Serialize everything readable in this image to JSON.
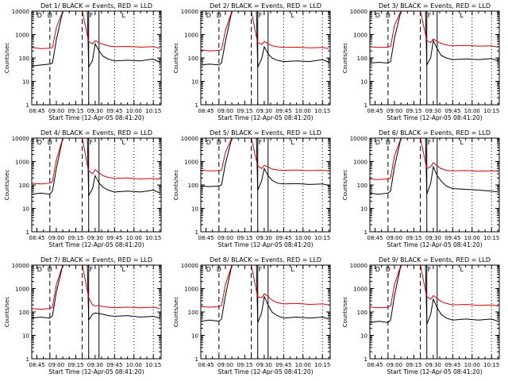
{
  "figure": {
    "y_label": "Counts/sec",
    "x_label": "Start Time (12-Apr-05 08:41:20)",
    "x_ticks": [
      "08:45",
      "09:00",
      "09:15",
      "09:30",
      "09:45",
      "10:00",
      "10:15"
    ],
    "y_ticks": [
      "1",
      "10",
      "100",
      "1000",
      "10000"
    ],
    "markers": [
      "D",
      "D",
      "F",
      "L"
    ],
    "colors": {
      "events": "#000000",
      "lld": "#dd0000",
      "background": "#ffffff"
    }
  },
  "chart_data": [
    {
      "type": "line",
      "title": "Det 1/ BLACK = Events, RED = LLD",
      "xlabel": "Start Time (12-Apr-05 08:41:20)",
      "ylabel": "Counts/sec",
      "x_range": [
        "08:41",
        "10:21"
      ],
      "ylim": [
        1,
        10000
      ],
      "yscale": "log",
      "x": [
        "08:41",
        "08:48",
        "08:55",
        "08:57",
        "09:00",
        "09:05",
        "09:10",
        "09:15",
        "09:20",
        "09:24",
        "09:25",
        "09:28",
        "09:30",
        "09:33",
        "09:36",
        "09:40",
        "09:45",
        "09:55",
        "10:05",
        "10:15",
        "10:20"
      ],
      "series": [
        {
          "name": "Events",
          "values": [
            45,
            50,
            55,
            60,
            600,
            10000,
            10000,
            10000,
            10000,
            10000,
            40,
            80,
            400,
            200,
            120,
            90,
            75,
            80,
            75,
            90,
            65
          ]
        },
        {
          "name": "LLD",
          "values": [
            280,
            250,
            260,
            280,
            2000,
            10000,
            10000,
            10000,
            10000,
            900,
            500,
            400,
            550,
            450,
            380,
            330,
            300,
            310,
            290,
            300,
            260
          ]
        }
      ]
    },
    {
      "type": "line",
      "title": "Det 2/ BLACK = Events, RED = LLD",
      "xlabel": "Start Time (12-Apr-05 08:41:20)",
      "ylabel": "Counts/sec",
      "x_range": [
        "08:41",
        "10:21"
      ],
      "ylim": [
        1,
        10000
      ],
      "yscale": "log",
      "x": [
        "08:41",
        "08:48",
        "08:55",
        "08:57",
        "09:00",
        "09:05",
        "09:10",
        "09:15",
        "09:20",
        "09:24",
        "09:25",
        "09:28",
        "09:30",
        "09:33",
        "09:36",
        "09:40",
        "09:45",
        "09:55",
        "10:05",
        "10:15",
        "10:20"
      ],
      "series": [
        {
          "name": "Events",
          "values": [
            50,
            55,
            50,
            60,
            500,
            10000,
            10000,
            10000,
            10000,
            10000,
            40,
            90,
            300,
            150,
            100,
            80,
            70,
            75,
            70,
            85,
            65
          ]
        },
        {
          "name": "LLD",
          "values": [
            220,
            200,
            210,
            230,
            1500,
            10000,
            10000,
            10000,
            10000,
            800,
            450,
            380,
            500,
            400,
            330,
            300,
            280,
            290,
            270,
            280,
            250
          ]
        }
      ]
    },
    {
      "type": "line",
      "title": "Det 3/ BLACK = Events, RED = LLD",
      "xlabel": "Start Time (12-Apr-05 08:41:20)",
      "ylabel": "Counts/sec",
      "x_range": [
        "08:41",
        "10:21"
      ],
      "ylim": [
        1,
        10000
      ],
      "yscale": "log",
      "x": [
        "08:41",
        "08:48",
        "08:55",
        "08:57",
        "09:00",
        "09:05",
        "09:10",
        "09:15",
        "09:20",
        "09:24",
        "09:25",
        "09:28",
        "09:30",
        "09:33",
        "09:36",
        "09:40",
        "09:45",
        "09:55",
        "10:05",
        "10:15",
        "10:20"
      ],
      "series": [
        {
          "name": "Events",
          "values": [
            60,
            65,
            60,
            70,
            700,
            10000,
            10000,
            10000,
            10000,
            10000,
            50,
            100,
            550,
            250,
            130,
            100,
            85,
            90,
            85,
            95,
            75
          ]
        },
        {
          "name": "LLD",
          "values": [
            300,
            280,
            290,
            310,
            2500,
            10000,
            10000,
            10000,
            10000,
            1000,
            550,
            450,
            650,
            500,
            420,
            360,
            330,
            340,
            320,
            330,
            290
          ]
        }
      ]
    },
    {
      "type": "line",
      "title": "Det 4/ BLACK = Events, RED = LLD",
      "xlabel": "Start Time (12-Apr-05 08:41:20)",
      "ylabel": "Counts/sec",
      "x_range": [
        "08:41",
        "10:21"
      ],
      "ylim": [
        1,
        10000
      ],
      "yscale": "log",
      "x": [
        "08:41",
        "08:48",
        "08:55",
        "08:57",
        "09:00",
        "09:05",
        "09:10",
        "09:15",
        "09:20",
        "09:24",
        "09:25",
        "09:28",
        "09:30",
        "09:33",
        "09:36",
        "09:40",
        "09:45",
        "09:55",
        "10:05",
        "10:15",
        "10:20"
      ],
      "series": [
        {
          "name": "Events",
          "values": [
            40,
            45,
            40,
            55,
            500,
            10000,
            10000,
            10000,
            10000,
            10000,
            35,
            70,
            250,
            120,
            80,
            60,
            50,
            55,
            50,
            60,
            45
          ]
        },
        {
          "name": "LLD",
          "values": [
            120,
            110,
            120,
            140,
            1200,
            10000,
            10000,
            10000,
            10000,
            700,
            400,
            300,
            450,
            330,
            250,
            210,
            190,
            200,
            180,
            190,
            170
          ]
        }
      ]
    },
    {
      "type": "line",
      "title": "Det 5/ BLACK = Events, RED = LLD",
      "xlabel": "Start Time (12-Apr-05 08:41:20)",
      "ylabel": "Counts/sec",
      "x_range": [
        "08:41",
        "10:21"
      ],
      "ylim": [
        1,
        10000
      ],
      "yscale": "log",
      "x": [
        "08:41",
        "08:48",
        "08:55",
        "08:57",
        "09:00",
        "09:05",
        "09:10",
        "09:15",
        "09:20",
        "09:24",
        "09:25",
        "09:28",
        "09:30",
        "09:33",
        "09:36",
        "09:40",
        "09:45",
        "09:55",
        "10:05",
        "10:15",
        "10:20"
      ],
      "series": [
        {
          "name": "Events",
          "values": [
            90,
            85,
            90,
            100,
            800,
            10000,
            10000,
            10000,
            10000,
            10000,
            60,
            150,
            500,
            250,
            160,
            120,
            110,
            115,
            105,
            110,
            95
          ]
        },
        {
          "name": "LLD",
          "values": [
            420,
            400,
            410,
            430,
            2500,
            10000,
            10000,
            10000,
            10000,
            1100,
            650,
            500,
            700,
            580,
            480,
            440,
            420,
            430,
            410,
            420,
            400
          ]
        }
      ]
    },
    {
      "type": "line",
      "title": "Det 6/ BLACK = Events, RED = LLD",
      "xlabel": "Start Time (12-Apr-05 08:41:20)",
      "ylabel": "Counts/sec",
      "x_range": [
        "08:41",
        "10:21"
      ],
      "ylim": [
        1,
        10000
      ],
      "yscale": "log",
      "x": [
        "08:41",
        "08:48",
        "08:55",
        "08:57",
        "09:00",
        "09:05",
        "09:10",
        "09:15",
        "09:20",
        "09:24",
        "09:25",
        "09:28",
        "09:30",
        "09:33",
        "09:36",
        "09:40",
        "09:45",
        "09:55",
        "10:05",
        "10:15",
        "10:20"
      ],
      "series": [
        {
          "name": "Events",
          "values": [
            45,
            40,
            45,
            55,
            600,
            10000,
            10000,
            10000,
            10000,
            10000,
            40,
            120,
            600,
            250,
            150,
            90,
            70,
            65,
            60,
            55,
            50
          ]
        },
        {
          "name": "LLD",
          "values": [
            180,
            170,
            180,
            200,
            1800,
            10000,
            10000,
            10000,
            10000,
            900,
            500,
            600,
            900,
            650,
            500,
            420,
            400,
            410,
            390,
            400,
            380
          ]
        }
      ]
    },
    {
      "type": "line",
      "title": "Det 7/ BLACK = Events, RED = LLD",
      "xlabel": "Start Time (12-Apr-05 08:41:20)",
      "ylabel": "Counts/sec",
      "x_range": [
        "08:41",
        "10:21"
      ],
      "ylim": [
        1,
        10000
      ],
      "yscale": "log",
      "x": [
        "08:41",
        "08:48",
        "08:55",
        "08:57",
        "09:00",
        "09:05",
        "09:10",
        "09:15",
        "09:20",
        "09:24",
        "09:25",
        "09:28",
        "09:30",
        "09:33",
        "09:36",
        "09:40",
        "09:45",
        "09:55",
        "10:05",
        "10:15",
        "10:20"
      ],
      "series": [
        {
          "name": "Events",
          "values": [
            55,
            60,
            55,
            70,
            700,
            10000,
            10000,
            10000,
            10000,
            10000,
            45,
            80,
            90,
            85,
            80,
            70,
            65,
            70,
            60,
            65,
            55
          ]
        },
        {
          "name": "LLD",
          "values": [
            140,
            130,
            140,
            160,
            1500,
            10000,
            10000,
            10000,
            10000,
            800,
            400,
            200,
            180,
            190,
            170,
            160,
            150,
            160,
            150,
            160,
            140
          ]
        }
      ]
    },
    {
      "type": "line",
      "title": "Det 8/ BLACK = Events, RED = LLD",
      "xlabel": "Start Time (12-Apr-05 08:41:20)",
      "ylabel": "Counts/sec",
      "x_range": [
        "08:41",
        "10:21"
      ],
      "ylim": [
        1,
        10000
      ],
      "yscale": "log",
      "x": [
        "08:41",
        "08:48",
        "08:55",
        "08:57",
        "09:00",
        "09:05",
        "09:10",
        "09:15",
        "09:20",
        "09:24",
        "09:25",
        "09:28",
        "09:30",
        "09:33",
        "09:36",
        "09:40",
        "09:45",
        "09:55",
        "10:05",
        "10:15",
        "10:20"
      ],
      "series": [
        {
          "name": "Events",
          "values": [
            40,
            45,
            40,
            50,
            500,
            10000,
            10000,
            10000,
            10000,
            10000,
            35,
            90,
            450,
            200,
            100,
            70,
            55,
            60,
            55,
            60,
            50
          ]
        },
        {
          "name": "LLD",
          "values": [
            170,
            160,
            170,
            190,
            1500,
            10000,
            10000,
            10000,
            10000,
            800,
            450,
            400,
            600,
            450,
            320,
            250,
            220,
            230,
            210,
            220,
            200
          ]
        }
      ]
    },
    {
      "type": "line",
      "title": "Det 9/ BLACK = Events, RED = LLD",
      "xlabel": "Start Time (12-Apr-05 08:41:20)",
      "ylabel": "Counts/sec",
      "x_range": [
        "08:41",
        "10:21"
      ],
      "ylim": [
        1,
        10000
      ],
      "yscale": "log",
      "x": [
        "08:41",
        "08:48",
        "08:55",
        "08:57",
        "09:00",
        "09:05",
        "09:10",
        "09:15",
        "09:20",
        "09:24",
        "09:25",
        "09:28",
        "09:30",
        "09:33",
        "09:36",
        "09:40",
        "09:45",
        "09:55",
        "10:05",
        "10:15",
        "10:20"
      ],
      "series": [
        {
          "name": "Events",
          "values": [
            35,
            40,
            35,
            45,
            500,
            10000,
            10000,
            10000,
            10000,
            10000,
            30,
            80,
            350,
            150,
            80,
            55,
            45,
            50,
            45,
            50,
            40
          ]
        },
        {
          "name": "LLD",
          "values": [
            160,
            150,
            160,
            180,
            1500,
            10000,
            10000,
            10000,
            10000,
            800,
            450,
            350,
            500,
            380,
            280,
            230,
            200,
            210,
            190,
            200,
            180
          ]
        }
      ]
    }
  ]
}
